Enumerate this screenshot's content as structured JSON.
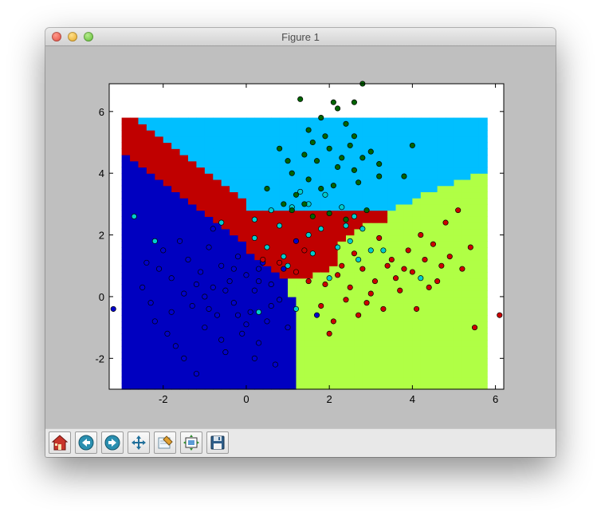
{
  "window": {
    "title": "Figure 1"
  },
  "toolbar": {
    "buttons": [
      {
        "name": "home-button",
        "icon": "home-icon"
      },
      {
        "name": "back-button",
        "icon": "back-arrow-icon"
      },
      {
        "name": "forward-button",
        "icon": "forward-arrow-icon"
      },
      {
        "name": "pan-button",
        "icon": "move-arrows-icon"
      },
      {
        "name": "zoom-button",
        "icon": "zoom-rect-icon"
      },
      {
        "name": "subplots-button",
        "icon": "subplots-icon"
      },
      {
        "name": "save-button",
        "icon": "floppy-disk-icon"
      }
    ]
  },
  "chart_data": {
    "type": "scatter",
    "title": "",
    "xlabel": "",
    "ylabel": "",
    "xlim": [
      -3.3,
      6.2
    ],
    "ylim": [
      -3.0,
      6.9
    ],
    "xticks": [
      "-2",
      "0",
      "2",
      "4",
      "6"
    ],
    "yticks": [
      "-2",
      "0",
      "2",
      "4",
      "6"
    ],
    "xtick_values": [
      -2,
      0,
      2,
      4,
      6
    ],
    "ytick_values": [
      -2,
      0,
      2,
      4,
      6
    ],
    "grid": false,
    "legend": "none",
    "decision_regions": {
      "grid_extent": {
        "x": [
          -3.0,
          5.8
        ],
        "y": [
          -3.0,
          5.8
        ]
      },
      "colors": {
        "blue": "#0000c0",
        "cyan": "#00bfff",
        "red": "#c00000",
        "green": "#b0ff45",
        "border": "#ff4500"
      }
    },
    "series": [
      {
        "color": "#0000cc",
        "points": [
          [
            -3.2,
            -0.4
          ],
          [
            1.7,
            -0.6
          ],
          [
            0.3,
            0.9
          ],
          [
            -0.8,
            2.2
          ],
          [
            1.2,
            1.8
          ],
          [
            -2.5,
            0.3
          ],
          [
            -2.2,
            -0.8
          ],
          [
            -2.0,
            1.5
          ],
          [
            -1.8,
            0.6
          ],
          [
            -1.7,
            -1.6
          ],
          [
            -1.5,
            0.1
          ],
          [
            -1.4,
            1.2
          ],
          [
            -1.3,
            -0.3
          ],
          [
            -1.2,
            -2.5
          ],
          [
            -1.1,
            0.8
          ],
          [
            -1.0,
            -1.0
          ],
          [
            -0.9,
            1.6
          ],
          [
            -0.8,
            0.3
          ],
          [
            -0.7,
            -0.6
          ],
          [
            -0.6,
            1.0
          ],
          [
            -0.5,
            -1.8
          ],
          [
            -0.4,
            0.5
          ],
          [
            -0.3,
            -0.2
          ],
          [
            -0.2,
            1.3
          ],
          [
            -0.1,
            -1.2
          ],
          [
            0.0,
            0.7
          ],
          [
            0.1,
            -0.5
          ],
          [
            0.2,
            0.2
          ],
          [
            0.3,
            -1.5
          ],
          [
            0.4,
            1.1
          ],
          [
            0.5,
            -0.8
          ],
          [
            0.6,
            0.4
          ],
          [
            0.7,
            -2.2
          ],
          [
            0.8,
            -0.1
          ],
          [
            0.9,
            0.9
          ],
          [
            1.0,
            -1.0
          ],
          [
            -2.3,
            -0.2
          ],
          [
            -2.1,
            0.9
          ],
          [
            -1.9,
            -1.2
          ],
          [
            -1.6,
            1.8
          ],
          [
            -1.5,
            -2.0
          ],
          [
            -1.2,
            0.4
          ],
          [
            -0.9,
            -0.4
          ],
          [
            -0.6,
            -1.4
          ],
          [
            -0.3,
            0.9
          ],
          [
            0.0,
            -0.9
          ],
          [
            0.3,
            0.5
          ],
          [
            0.6,
            -0.3
          ],
          [
            -1.8,
            -0.5
          ],
          [
            -2.4,
            1.1
          ],
          [
            -1.0,
            0.0
          ],
          [
            -0.5,
            0.2
          ],
          [
            0.2,
            -2.0
          ],
          [
            -0.2,
            -0.6
          ]
        ]
      },
      {
        "color": "#00cccc",
        "points": [
          [
            -2.7,
            2.6
          ],
          [
            -2.2,
            1.8
          ],
          [
            -0.6,
            2.4
          ],
          [
            0.2,
            2.5
          ],
          [
            0.8,
            2.3
          ],
          [
            1.5,
            2.0
          ],
          [
            1.8,
            2.2
          ],
          [
            2.2,
            1.6
          ],
          [
            2.5,
            1.8
          ],
          [
            3.0,
            1.5
          ],
          [
            3.3,
            1.5
          ],
          [
            2.7,
            1.2
          ],
          [
            2.0,
            0.6
          ],
          [
            1.6,
            1.4
          ],
          [
            0.9,
            1.3
          ],
          [
            0.5,
            1.6
          ],
          [
            0.2,
            1.9
          ],
          [
            0.6,
            2.8
          ],
          [
            1.1,
            2.9
          ],
          [
            1.5,
            3.0
          ],
          [
            1.9,
            3.3
          ],
          [
            2.3,
            2.9
          ],
          [
            2.6,
            2.6
          ],
          [
            0.3,
            -0.5
          ],
          [
            1.2,
            -0.4
          ],
          [
            4.2,
            0.6
          ],
          [
            1.3,
            3.4
          ],
          [
            1.0,
            1.0
          ],
          [
            2.8,
            2.2
          ],
          [
            2.4,
            2.3
          ]
        ]
      },
      {
        "color": "#cc0000",
        "points": [
          [
            0.4,
            1.2
          ],
          [
            0.8,
            1.1
          ],
          [
            1.2,
            0.8
          ],
          [
            1.5,
            0.5
          ],
          [
            1.9,
            0.4
          ],
          [
            2.2,
            0.7
          ],
          [
            2.5,
            0.3
          ],
          [
            2.8,
            0.9
          ],
          [
            3.1,
            0.5
          ],
          [
            3.4,
            1.0
          ],
          [
            3.7,
            0.2
          ],
          [
            4.0,
            0.8
          ],
          [
            4.3,
            1.2
          ],
          [
            4.6,
            0.5
          ],
          [
            4.9,
            1.3
          ],
          [
            5.2,
            0.9
          ],
          [
            5.5,
            -1.0
          ],
          [
            1.8,
            -0.3
          ],
          [
            2.1,
            -0.8
          ],
          [
            2.4,
            -0.1
          ],
          [
            2.7,
            -0.6
          ],
          [
            3.0,
            0.1
          ],
          [
            3.3,
            -0.4
          ],
          [
            3.6,
            0.6
          ],
          [
            3.9,
            1.5
          ],
          [
            4.2,
            2.0
          ],
          [
            4.5,
            1.7
          ],
          [
            4.8,
            2.4
          ],
          [
            5.1,
            2.8
          ],
          [
            5.4,
            1.6
          ],
          [
            2.0,
            -1.2
          ],
          [
            2.6,
            1.4
          ],
          [
            3.2,
            1.9
          ],
          [
            3.5,
            1.2
          ],
          [
            4.1,
            -0.4
          ],
          [
            4.4,
            0.3
          ],
          [
            6.1,
            -0.6
          ],
          [
            1.4,
            1.5
          ],
          [
            2.3,
            1.0
          ],
          [
            2.9,
            -0.2
          ],
          [
            3.8,
            0.9
          ],
          [
            4.7,
            1.0
          ]
        ]
      },
      {
        "color": "#006400",
        "points": [
          [
            1.3,
            6.4
          ],
          [
            2.1,
            6.3
          ],
          [
            2.6,
            6.3
          ],
          [
            2.8,
            6.9
          ],
          [
            2.2,
            6.1
          ],
          [
            1.8,
            5.8
          ],
          [
            2.4,
            5.6
          ],
          [
            1.9,
            5.2
          ],
          [
            1.6,
            5.0
          ],
          [
            2.0,
            4.8
          ],
          [
            1.4,
            4.6
          ],
          [
            1.7,
            4.4
          ],
          [
            2.2,
            4.2
          ],
          [
            1.1,
            4.0
          ],
          [
            1.5,
            3.8
          ],
          [
            2.5,
            4.9
          ],
          [
            2.8,
            4.5
          ],
          [
            1.0,
            4.4
          ],
          [
            0.8,
            4.8
          ],
          [
            3.0,
            4.7
          ],
          [
            3.2,
            4.3
          ],
          [
            2.6,
            4.1
          ],
          [
            2.1,
            3.6
          ],
          [
            1.2,
            3.3
          ],
          [
            0.9,
            3.0
          ],
          [
            1.6,
            2.6
          ],
          [
            2.0,
            2.7
          ],
          [
            2.4,
            2.5
          ],
          [
            3.2,
            3.9
          ],
          [
            4.0,
            4.9
          ],
          [
            3.8,
            3.9
          ],
          [
            1.4,
            3.0
          ],
          [
            1.8,
            3.5
          ],
          [
            2.7,
            3.7
          ],
          [
            2.3,
            4.5
          ],
          [
            1.1,
            2.8
          ],
          [
            2.9,
            2.8
          ],
          [
            0.5,
            3.5
          ],
          [
            1.5,
            5.4
          ],
          [
            2.6,
            5.2
          ]
        ]
      }
    ]
  }
}
